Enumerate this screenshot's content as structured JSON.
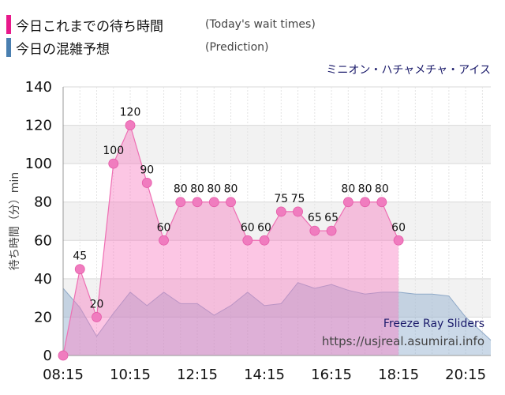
{
  "legend": {
    "today": {
      "jp": "今日これまでの待ち時間",
      "en": "(Today's wait times)",
      "color": "#e8198b"
    },
    "prediction": {
      "jp": "今日の混雑予想",
      "en": "(Prediction)",
      "color": "#4a7fb0"
    }
  },
  "attraction": "ミニオン・ハチャメチャ・アイス",
  "watermark": {
    "title": "Freeze Ray Sliders",
    "url": "https://usjreal.asumirai.info"
  },
  "chart_data": {
    "type": "area",
    "xlabel": "",
    "ylabel": "待ち時間（分）min",
    "ylim": [
      0,
      140
    ],
    "y_ticks": [
      0,
      20,
      40,
      60,
      80,
      100,
      120,
      140
    ],
    "x_tick_labels": [
      "08:15",
      "10:15",
      "12:15",
      "14:15",
      "16:15",
      "18:15",
      "20:15"
    ],
    "xlim": [
      "08:15",
      "21:00"
    ],
    "series": [
      {
        "name": "今日これまでの待ち時間",
        "x": [
          "08:15",
          "08:45",
          "09:15",
          "09:45",
          "10:15",
          "10:45",
          "11:15",
          "11:45",
          "12:15",
          "12:45",
          "13:15",
          "13:45",
          "14:15",
          "14:45",
          "15:15",
          "15:45",
          "16:15",
          "16:45",
          "17:15",
          "17:45",
          "18:15"
        ],
        "values": [
          0,
          45,
          20,
          100,
          120,
          90,
          60,
          80,
          80,
          80,
          80,
          60,
          60,
          75,
          75,
          65,
          65,
          80,
          80,
          80,
          60
        ]
      },
      {
        "name": "今日の混雑予想",
        "x": [
          "08:15",
          "08:45",
          "09:15",
          "09:45",
          "10:15",
          "10:45",
          "11:15",
          "11:45",
          "12:15",
          "12:45",
          "13:15",
          "13:45",
          "14:15",
          "14:45",
          "15:15",
          "15:45",
          "16:15",
          "16:45",
          "17:15",
          "17:45",
          "18:15",
          "18:45",
          "19:15",
          "19:45",
          "20:15",
          "20:45",
          "21:00"
        ],
        "values": [
          35,
          25,
          10,
          22,
          33,
          26,
          33,
          27,
          27,
          21,
          26,
          33,
          26,
          27,
          38,
          35,
          37,
          34,
          32,
          33,
          33,
          32,
          32,
          31,
          20,
          12,
          8
        ]
      }
    ]
  }
}
